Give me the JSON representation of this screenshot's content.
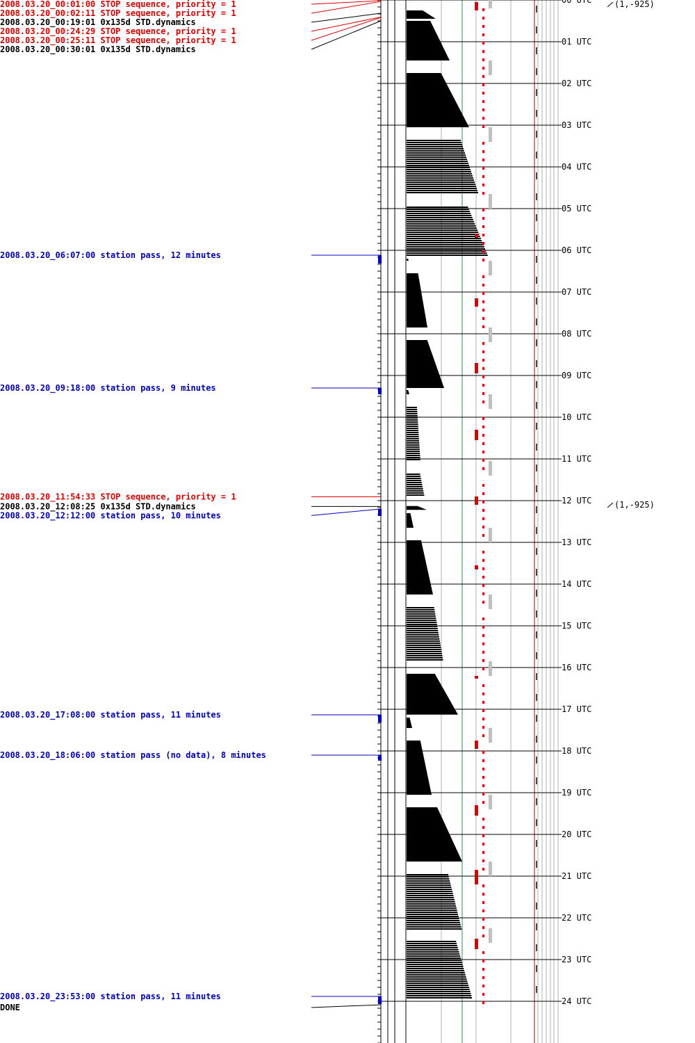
{
  "colors": {
    "stop": "#e00000",
    "command": "#000000",
    "pass": "#0000c0",
    "status_line": "#000000",
    "green_line": "#2e8b57",
    "grey_line": "#b0b0b0",
    "red_dash": "#e00000",
    "grey_dash": "#c0c0c0",
    "dark_red_line": "#a00000"
  },
  "events": [
    {
      "text": "2008.03.20_00:01:00 STOP sequence, priority = 1",
      "kind": "stop",
      "hour": 0.0167
    },
    {
      "text": "2008.03.20_00:02:11 STOP sequence, priority = 1",
      "kind": "stop",
      "hour": 0.0364
    },
    {
      "text": "2008.03.20_00:19:01 0x135d STD.dynamics",
      "kind": "command",
      "hour": 0.3169
    },
    {
      "text": "2008.03.20_00:24:29 STOP sequence, priority = 1",
      "kind": "stop",
      "hour": 0.4081
    },
    {
      "text": "2008.03.20_00:25:11 STOP sequence, priority = 1",
      "kind": "stop",
      "hour": 0.4197
    },
    {
      "text": "2008.03.20_00:30:01 0x135d STD.dynamics",
      "kind": "command",
      "hour": 0.5003
    },
    {
      "text": "2008.03.20_06:07:00 station pass, 12 minutes",
      "kind": "pass",
      "hour": 6.1167,
      "duration_min": 12
    },
    {
      "text": "2008.03.20_09:18:00 station pass, 9 minutes",
      "kind": "pass",
      "hour": 9.3,
      "duration_min": 9
    },
    {
      "text": "2008.03.20_11:54:33 STOP sequence, priority = 1",
      "kind": "stop",
      "hour": 11.9092
    },
    {
      "text": "2008.03.20_12:08:25 0x135d STD.dynamics",
      "kind": "command",
      "hour": 12.1403
    },
    {
      "text": "2008.03.20_12:12:00 station pass, 10 minutes",
      "kind": "pass",
      "hour": 12.2,
      "duration_min": 10
    },
    {
      "text": "2008.03.20_17:08:00 station pass, 11 minutes",
      "kind": "pass",
      "hour": 17.1333,
      "duration_min": 11
    },
    {
      "text": "2008.03.20_18:06:00 station pass (no data), 8 minutes",
      "kind": "pass",
      "hour": 18.1,
      "duration_min": 8
    },
    {
      "text": "2008.03.20_23:53:00 station pass, 11 minutes",
      "kind": "pass",
      "hour": 23.8833,
      "duration_min": 11
    },
    {
      "text": "DONE",
      "kind": "command",
      "hour": 24.05
    }
  ],
  "hour_labels": [
    "00 UTC",
    "01 UTC",
    "02 UTC",
    "03 UTC",
    "04 UTC",
    "05 UTC",
    "06 UTC",
    "07 UTC",
    "08 UTC",
    "09 UTC",
    "10 UTC",
    "11 UTC",
    "12 UTC",
    "13 UTC",
    "14 UTC",
    "15 UTC",
    "16 UTC",
    "17 UTC",
    "18 UTC",
    "19 UTC",
    "20 UTC",
    "21 UTC",
    "22 UTC",
    "23 UTC",
    "24 UTC"
  ],
  "annotations": [
    {
      "text": "(1,-925)",
      "hour": 0
    },
    {
      "text": "(1,-925)",
      "hour": 12
    }
  ],
  "sawtooth": [
    {
      "start": 0.25,
      "end": 0.45,
      "w0": 0,
      "w1": 42,
      "striped": false
    },
    {
      "start": 0.5,
      "end": 1.45,
      "w0": 0,
      "w1": 62,
      "striped": false
    },
    {
      "start": 1.75,
      "end": 3.05,
      "w0": 0,
      "w1": 90,
      "striped": false
    },
    {
      "start": 3.35,
      "end": 4.65,
      "w0": 0,
      "w1": 104,
      "striped": true
    },
    {
      "start": 4.95,
      "end": 6.15,
      "w0": 0,
      "w1": 118,
      "striped": true
    },
    {
      "start": 6.2,
      "end": 6.25,
      "w0": 0,
      "w1": 3,
      "striped": false
    },
    {
      "start": 6.55,
      "end": 7.85,
      "w0": 0,
      "w1": 30,
      "striped": false
    },
    {
      "start": 8.15,
      "end": 9.3,
      "w0": 0,
      "w1": 54,
      "striped": false
    },
    {
      "start": 9.35,
      "end": 9.45,
      "w0": 0,
      "w1": 4,
      "striped": false
    },
    {
      "start": 9.75,
      "end": 11.05,
      "w0": 0,
      "w1": 20,
      "striped": true
    },
    {
      "start": 11.35,
      "end": 11.9,
      "w0": 0,
      "w1": 26,
      "striped": true
    },
    {
      "start": 12.13,
      "end": 12.22,
      "w0": 0,
      "w1": 29,
      "striped": false
    },
    {
      "start": 12.3,
      "end": 12.65,
      "w0": 0,
      "w1": 10,
      "striped": false
    },
    {
      "start": 12.95,
      "end": 14.25,
      "w0": 0,
      "w1": 38,
      "striped": false
    },
    {
      "start": 14.55,
      "end": 15.85,
      "w0": 0,
      "w1": 53,
      "striped": true
    },
    {
      "start": 16.15,
      "end": 17.13,
      "w0": 0,
      "w1": 74,
      "striped": false
    },
    {
      "start": 17.2,
      "end": 17.45,
      "w0": 0,
      "w1": 8,
      "striped": false
    },
    {
      "start": 17.75,
      "end": 19.05,
      "w0": 0,
      "w1": 36,
      "striped": false
    },
    {
      "start": 19.35,
      "end": 20.65,
      "w0": 0,
      "w1": 80,
      "striped": false
    },
    {
      "start": 20.95,
      "end": 22.3,
      "w0": 0,
      "w1": 80,
      "striped": true
    },
    {
      "start": 22.55,
      "end": 23.95,
      "w0": 0,
      "w1": 95,
      "striped": true
    }
  ],
  "red_blocks": [
    {
      "start": 0.05,
      "end": 0.25,
      "col": "a"
    },
    {
      "start": 5.6,
      "end": 5.7,
      "col": "a"
    },
    {
      "start": 7.15,
      "end": 7.35,
      "col": "a"
    },
    {
      "start": 8.7,
      "end": 8.95,
      "col": "a"
    },
    {
      "start": 10.3,
      "end": 10.55,
      "col": "a"
    },
    {
      "start": 11.9,
      "end": 12.1,
      "col": "a"
    },
    {
      "start": 13.55,
      "end": 13.65,
      "col": "a"
    },
    {
      "start": 16.2,
      "end": 16.25,
      "col": "a"
    },
    {
      "start": 17.75,
      "end": 17.95,
      "col": "a"
    },
    {
      "start": 19.3,
      "end": 19.55,
      "col": "a"
    },
    {
      "start": 20.85,
      "end": 21.2,
      "col": "a"
    },
    {
      "start": 22.5,
      "end": 22.75,
      "col": "a"
    }
  ],
  "grey_blocks": [
    {
      "start": 0.0,
      "end": 0.2
    },
    {
      "start": 1.45,
      "end": 1.8
    },
    {
      "start": 3.05,
      "end": 3.4
    },
    {
      "start": 4.65,
      "end": 5.0
    },
    {
      "start": 6.25,
      "end": 6.6
    },
    {
      "start": 7.85,
      "end": 8.2
    },
    {
      "start": 9.45,
      "end": 9.8
    },
    {
      "start": 11.05,
      "end": 11.4
    },
    {
      "start": 12.65,
      "end": 13.0
    },
    {
      "start": 14.25,
      "end": 14.6
    },
    {
      "start": 15.85,
      "end": 16.2
    },
    {
      "start": 17.45,
      "end": 17.8
    },
    {
      "start": 19.05,
      "end": 19.4
    },
    {
      "start": 20.65,
      "end": 21.0
    },
    {
      "start": 22.25,
      "end": 22.6
    }
  ]
}
